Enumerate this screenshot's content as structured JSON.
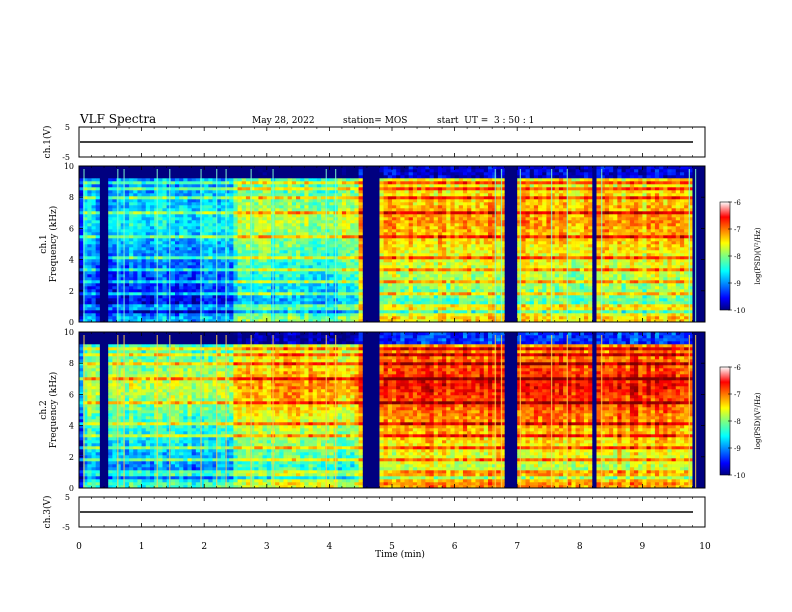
{
  "header": {
    "title": "VLF Spectra",
    "date": "May 28, 2022",
    "station": "station= MOS",
    "start": "start  UT =  3 : 50 : 1"
  },
  "chart_data": [
    {
      "type": "line",
      "name": "ch1-waveform",
      "ylabel": "ch.1(V)",
      "ylim": [
        -5,
        5
      ],
      "yticks": [
        "5",
        "-5"
      ],
      "x": [
        0,
        10
      ],
      "y": [
        0,
        0
      ]
    },
    {
      "type": "heatmap",
      "name": "ch1-spectrogram",
      "ylabel": "ch.1\nFrequency (kHz)",
      "ylabel_line1": "ch.1",
      "ylabel_line2": "Frequency (kHz)",
      "ylim": [
        0,
        10
      ],
      "yticks": [
        "0",
        "2",
        "4",
        "6",
        "8",
        "10"
      ],
      "colorbar": {
        "label": "log(PSD)(V²/Hz)",
        "range": [
          -10,
          -6
        ],
        "ticks": [
          "-6",
          "-7",
          "-8",
          "-9",
          "-10"
        ]
      }
    },
    {
      "type": "heatmap",
      "name": "ch2-spectrogram",
      "ylabel_line1": "ch.2",
      "ylabel_line2": "Frequency (kHz)",
      "ylim": [
        0,
        10
      ],
      "yticks": [
        "0",
        "2",
        "4",
        "6",
        "8",
        "10"
      ],
      "colorbar": {
        "label": "log(PSD)(V²/Hz)",
        "range": [
          -10,
          -6
        ],
        "ticks": [
          "-6",
          "-7",
          "-8",
          "-9",
          "-10"
        ]
      }
    },
    {
      "type": "line",
      "name": "ch3-waveform",
      "ylabel": "ch.3(V)",
      "ylim": [
        -5,
        5
      ],
      "yticks": [
        "5",
        "-5"
      ],
      "x": [
        0,
        10
      ],
      "y": [
        0,
        0
      ]
    }
  ],
  "xaxis": {
    "label": "Time (min)",
    "range": [
      0,
      10
    ],
    "ticks": [
      "0",
      "1",
      "2",
      "3",
      "4",
      "5",
      "6",
      "7",
      "8",
      "9",
      "10"
    ]
  }
}
